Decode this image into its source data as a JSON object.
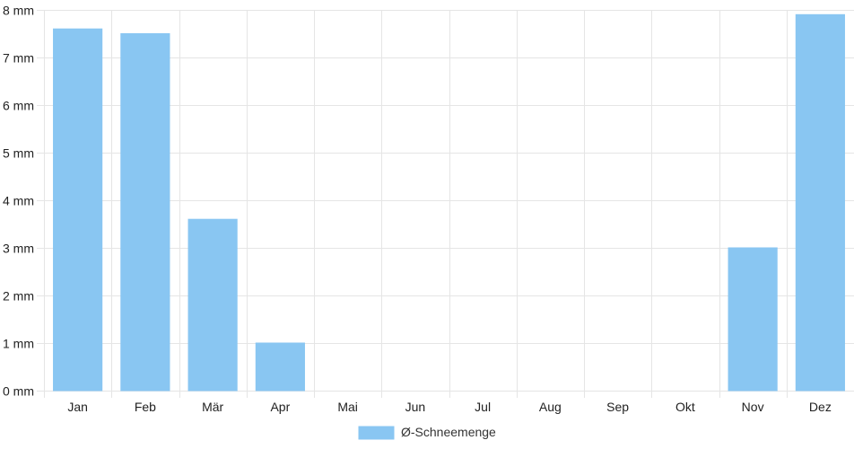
{
  "chart_data": {
    "type": "bar",
    "categories": [
      "Jan",
      "Feb",
      "Mär",
      "Apr",
      "Mai",
      "Jun",
      "Jul",
      "Aug",
      "Sep",
      "Okt",
      "Nov",
      "Dez"
    ],
    "series": [
      {
        "name": "Ø-Schneemenge",
        "values": [
          7.6,
          7.5,
          3.6,
          1.0,
          0,
          0,
          0,
          0,
          0,
          0,
          3.0,
          7.9
        ],
        "color": "#89c6f2",
        "border_color": "#89c6f2"
      }
    ],
    "ylim": [
      0,
      8
    ],
    "y_ticks": [
      0,
      1,
      2,
      3,
      4,
      5,
      6,
      7,
      8
    ],
    "y_tick_labels": [
      "0 mm",
      "1 mm",
      "2 mm",
      "3 mm",
      "4 mm",
      "5 mm",
      "6 mm",
      "7 mm",
      "8 mm"
    ],
    "grid": true,
    "grid_color": "#e5e5e5",
    "legend": {
      "position": "bottom",
      "label": "Ø-Schneemenge"
    }
  }
}
